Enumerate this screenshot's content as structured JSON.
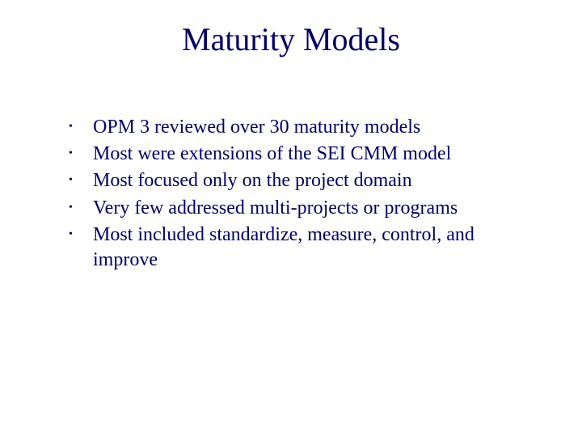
{
  "slide": {
    "title": "Maturity Models",
    "title_color": "#000066",
    "title_fontsize": 40,
    "text_color": "#000066",
    "bullet_fontsize": 24,
    "background_color": "#ffffff",
    "bullets": [
      "OPM 3 reviewed over 30 maturity models",
      "Most were extensions of the SEI CMM model",
      "Most focused only on the project domain",
      "Very few addressed multi-projects or programs",
      "Most included standardize, measure, control, and improve"
    ]
  }
}
